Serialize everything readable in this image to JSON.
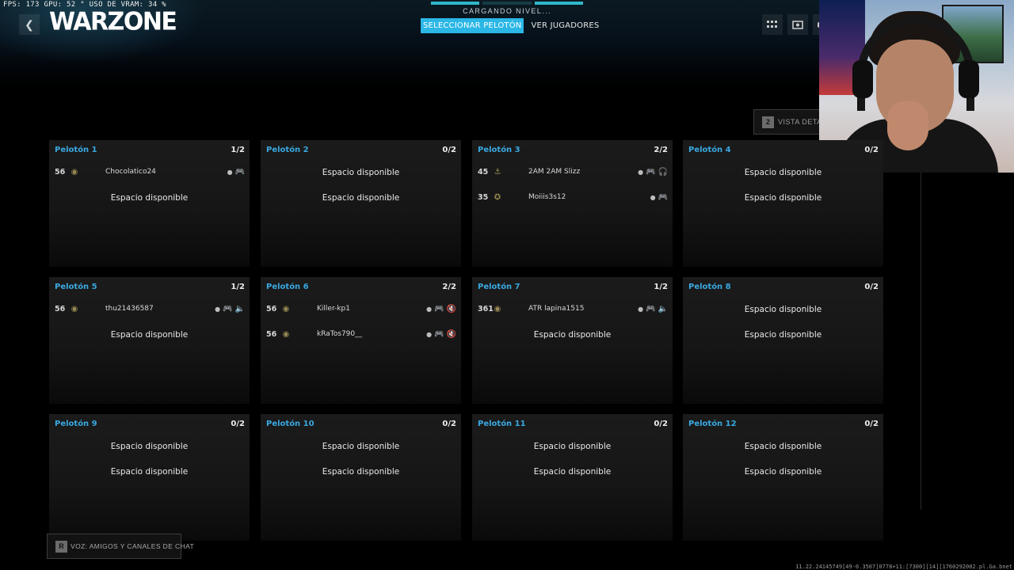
{
  "performance_overlay": "FPS: 173  GPU: 52 °  USO DE VRAM: 34 %",
  "header": {
    "back_icon": "chevron-left-icon",
    "game_title": "WARZONE",
    "loading_label": "CARGANDO NIVEL...",
    "loading_progress_filled_segments": 2,
    "loading_progress_total_segments": 3,
    "tabs": [
      {
        "label": "SELECCIONAR PELOTÓN",
        "active": true
      },
      {
        "label": "VER JUGADORES",
        "active": false
      }
    ],
    "icons": [
      "grid-icon",
      "camera-icon",
      "controller-icon"
    ]
  },
  "detail_view": {
    "key": "2",
    "label": "VISTA DETALLADA"
  },
  "voice_chat": {
    "key": "R",
    "label": "VOZ: AMIGOS Y CANALES DE CHAT"
  },
  "squads": [
    {
      "title": "Pelotón 1",
      "count": "1/2",
      "slots": [
        {
          "type": "player",
          "level": "56",
          "emblem": "emblem-icon",
          "name": "Chocolatico24",
          "icons": [
            "dot-icon",
            "controller-icon"
          ]
        },
        {
          "type": "empty",
          "label": "Espacio disponible"
        }
      ]
    },
    {
      "title": "Pelotón 2",
      "count": "0/2",
      "slots": [
        {
          "type": "empty",
          "label": "Espacio disponible"
        },
        {
          "type": "empty",
          "label": "Espacio disponible"
        }
      ]
    },
    {
      "title": "Pelotón 3",
      "count": "2/2",
      "slots": [
        {
          "type": "player",
          "level": "45",
          "emblem": "anchor-emblem-icon",
          "name": "2AM  2AM Slizz",
          "icons": [
            "dot-icon",
            "controller-icon",
            "headset-icon"
          ]
        },
        {
          "type": "player",
          "level": "35",
          "emblem": "gold-emblem-icon",
          "name": "Moiiis3s12",
          "icons": [
            "dot-icon",
            "controller-icon"
          ]
        }
      ]
    },
    {
      "title": "Pelotón 4",
      "count": "0/2",
      "slots": [
        {
          "type": "empty",
          "label": "Espacio disponible"
        },
        {
          "type": "empty",
          "label": "Espacio disponible"
        }
      ]
    },
    {
      "title": "Pelotón 5",
      "count": "1/2",
      "slots": [
        {
          "type": "player",
          "level": "56",
          "emblem": "emblem-icon",
          "name": "thu21436587",
          "icons": [
            "dot-icon",
            "controller-icon",
            "speaker-icon"
          ]
        },
        {
          "type": "empty",
          "label": "Espacio disponible"
        }
      ]
    },
    {
      "title": "Pelotón 6",
      "count": "2/2",
      "slots": [
        {
          "type": "player",
          "level": "56",
          "emblem": "emblem-icon",
          "name": "Killer-kp1",
          "icons": [
            "dot-icon",
            "controller-icon",
            "muted-speaker-icon"
          ]
        },
        {
          "type": "player",
          "level": "56",
          "emblem": "emblem-icon",
          "name": "kRaTos790__",
          "icons": [
            "dot-icon",
            "controller-icon",
            "muted-speaker-icon"
          ]
        }
      ]
    },
    {
      "title": "Pelotón 7",
      "count": "1/2",
      "slots": [
        {
          "type": "player",
          "level": "361",
          "emblem": "emblem-icon",
          "name": "ATR lapina1515",
          "icons": [
            "dot-icon",
            "controller-icon",
            "speaker-icon"
          ]
        },
        {
          "type": "empty",
          "label": "Espacio disponible"
        }
      ]
    },
    {
      "title": "Pelotón 8",
      "count": "0/2",
      "slots": [
        {
          "type": "empty",
          "label": "Espacio disponible"
        },
        {
          "type": "empty",
          "label": "Espacio disponible"
        }
      ]
    },
    {
      "title": "Pelotón 9",
      "count": "0/2",
      "slots": [
        {
          "type": "empty",
          "label": "Espacio disponible"
        },
        {
          "type": "empty",
          "label": "Espacio disponible"
        }
      ]
    },
    {
      "title": "Pelotón 10",
      "count": "0/2",
      "slots": [
        {
          "type": "empty",
          "label": "Espacio disponible"
        },
        {
          "type": "empty",
          "label": "Espacio disponible"
        }
      ]
    },
    {
      "title": "Pelotón 11",
      "count": "0/2",
      "slots": [
        {
          "type": "empty",
          "label": "Espacio disponible"
        },
        {
          "type": "empty",
          "label": "Espacio disponible"
        }
      ]
    },
    {
      "title": "Pelotón 12",
      "count": "0/2",
      "slots": [
        {
          "type": "empty",
          "label": "Espacio disponible"
        },
        {
          "type": "empty",
          "label": "Espacio disponible"
        }
      ]
    }
  ],
  "footer_code": "11.22.24145749[49-0.3507]0778+11:[7300][14][1760292002.pl.Ga.bnet",
  "colors": {
    "accent": "#2bb7e6",
    "squad_title": "#3aa8e0",
    "loading_bar": "#2fb8c9"
  }
}
